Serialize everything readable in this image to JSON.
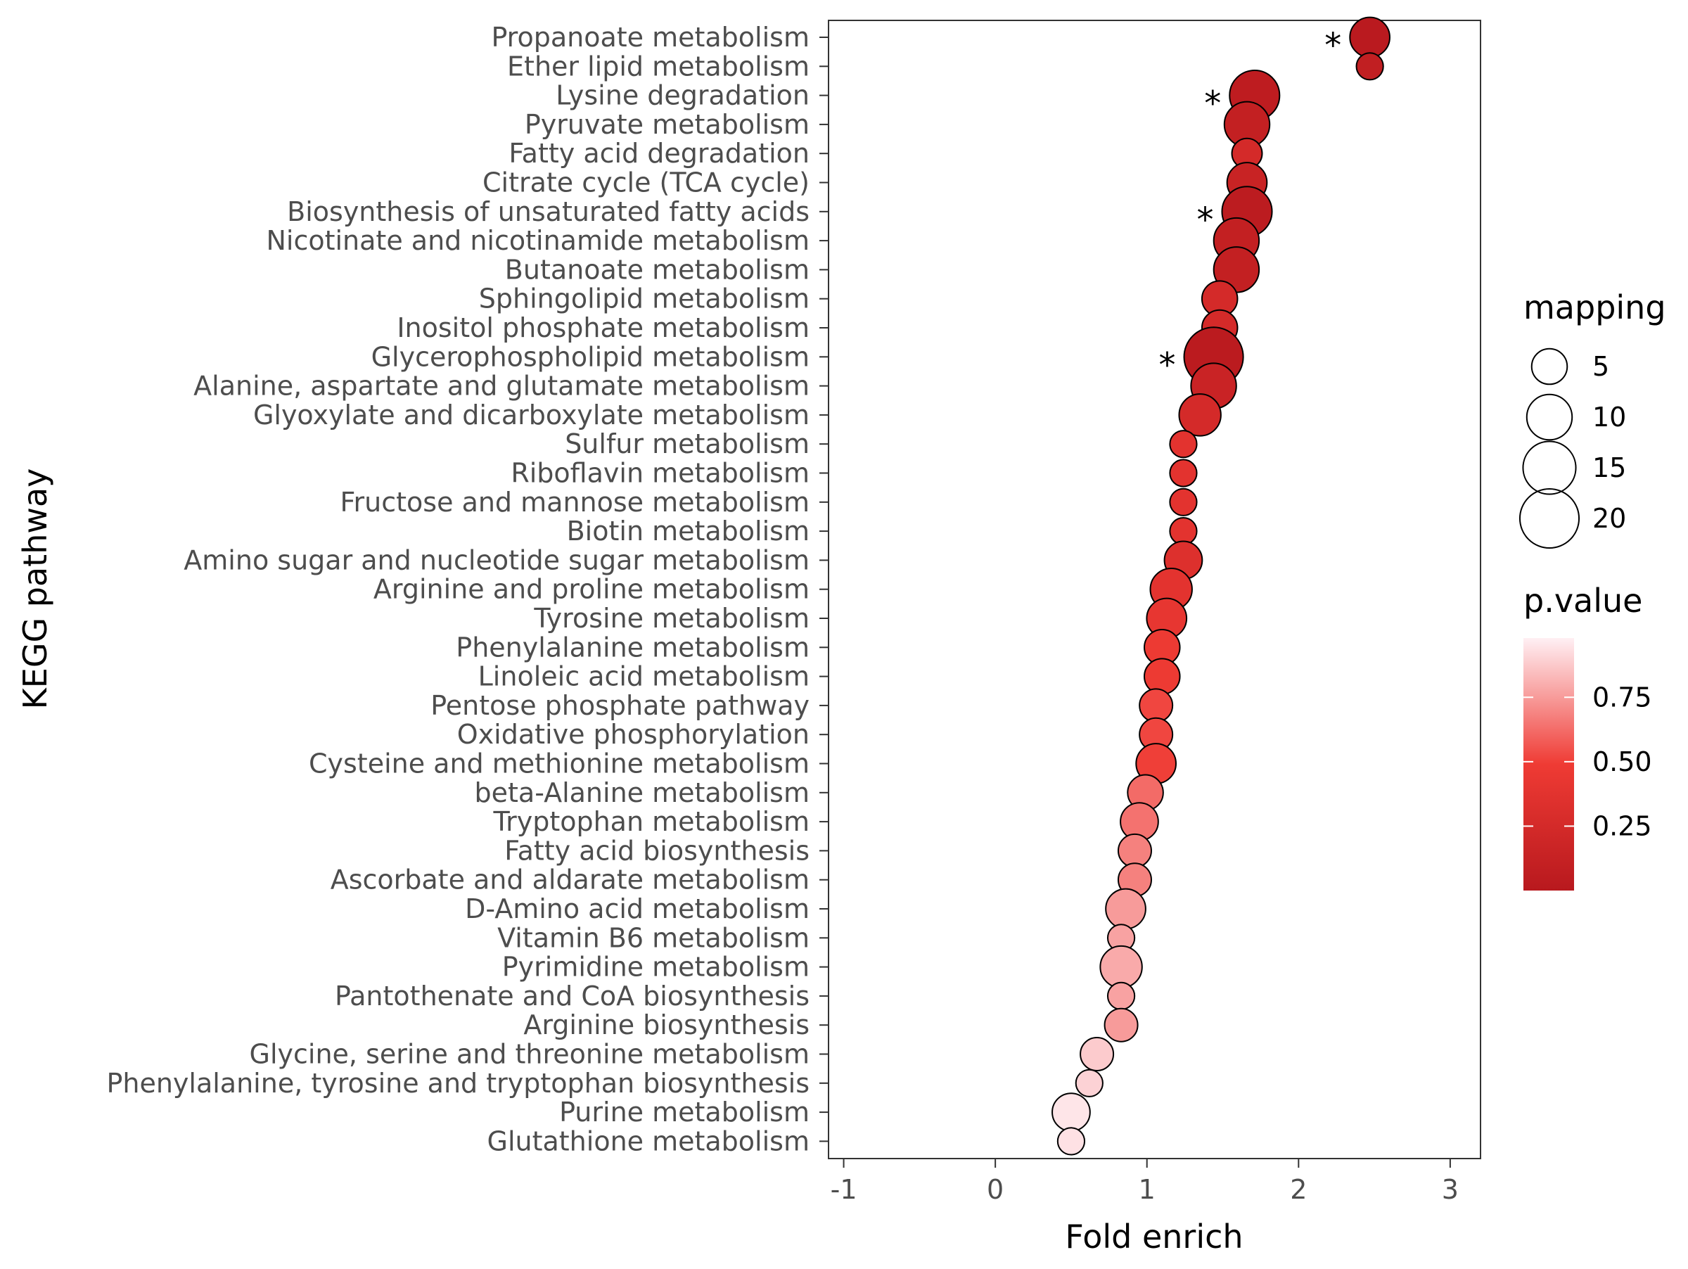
{
  "chart_data": {
    "type": "scatter",
    "xlabel": "Fold enrich",
    "ylabel": "KEGG pathway",
    "xlim": [
      -1.1,
      3.2
    ],
    "x_ticks": [
      "-1",
      "0",
      "1",
      "2",
      "3"
    ],
    "grid": false,
    "legend_position": "right",
    "points": [
      {
        "pathway": "Propanoate metabolism",
        "x": 2.47,
        "mapping": 7,
        "p": 0.02,
        "star": "*"
      },
      {
        "pathway": "Ether lipid metabolism",
        "x": 2.47,
        "mapping": 2,
        "p": 0.08,
        "star": ""
      },
      {
        "pathway": "Lysine degradation",
        "x": 1.71,
        "mapping": 13,
        "p": 0.05,
        "star": "*"
      },
      {
        "pathway": "Pyruvate metabolism",
        "x": 1.66,
        "mapping": 10,
        "p": 0.1,
        "star": ""
      },
      {
        "pathway": "Fatty acid degradation",
        "x": 1.66,
        "mapping": 3,
        "p": 0.25,
        "star": ""
      },
      {
        "pathway": "Citrate cycle (TCA cycle)",
        "x": 1.66,
        "mapping": 7,
        "p": 0.14,
        "star": ""
      },
      {
        "pathway": "Biosynthesis of unsaturated fatty acids",
        "x": 1.66,
        "mapping": 13,
        "p": 0.04,
        "star": "*"
      },
      {
        "pathway": "Nicotinate and nicotinamide metabolism",
        "x": 1.59,
        "mapping": 10,
        "p": 0.1,
        "star": ""
      },
      {
        "pathway": "Butanoate metabolism",
        "x": 1.59,
        "mapping": 10,
        "p": 0.1,
        "star": ""
      },
      {
        "pathway": "Sphingolipid metabolism",
        "x": 1.48,
        "mapping": 5,
        "p": 0.25,
        "star": ""
      },
      {
        "pathway": "Inositol phosphate metabolism",
        "x": 1.48,
        "mapping": 5,
        "p": 0.25,
        "star": ""
      },
      {
        "pathway": "Glycerophospholipid metabolism",
        "x": 1.44,
        "mapping": 20,
        "p": 0.03,
        "star": "*"
      },
      {
        "pathway": "Alanine, aspartate and glutamate metabolism",
        "x": 1.44,
        "mapping": 10,
        "p": 0.15,
        "star": ""
      },
      {
        "pathway": "Glyoxylate and dicarboxylate metabolism",
        "x": 1.35,
        "mapping": 8,
        "p": 0.25,
        "star": ""
      },
      {
        "pathway": "Sulfur metabolism",
        "x": 1.24,
        "mapping": 2,
        "p": 0.38,
        "star": ""
      },
      {
        "pathway": "Riboflavin metabolism",
        "x": 1.24,
        "mapping": 2,
        "p": 0.38,
        "star": ""
      },
      {
        "pathway": "Fructose and mannose metabolism",
        "x": 1.24,
        "mapping": 2,
        "p": 0.38,
        "star": ""
      },
      {
        "pathway": "Biotin metabolism",
        "x": 1.24,
        "mapping": 2,
        "p": 0.38,
        "star": ""
      },
      {
        "pathway": "Amino sugar and nucleotide sugar metabolism",
        "x": 1.24,
        "mapping": 6,
        "p": 0.33,
        "star": ""
      },
      {
        "pathway": "Arginine and proline metabolism",
        "x": 1.16,
        "mapping": 8,
        "p": 0.38,
        "star": ""
      },
      {
        "pathway": "Tyrosine metabolism",
        "x": 1.13,
        "mapping": 7,
        "p": 0.42,
        "star": ""
      },
      {
        "pathway": "Phenylalanine metabolism",
        "x": 1.1,
        "mapping": 5,
        "p": 0.47,
        "star": ""
      },
      {
        "pathway": "Linoleic acid metabolism",
        "x": 1.1,
        "mapping": 5,
        "p": 0.47,
        "star": ""
      },
      {
        "pathway": "Pentose phosphate pathway",
        "x": 1.06,
        "mapping": 4,
        "p": 0.52,
        "star": ""
      },
      {
        "pathway": "Oxidative phosphorylation",
        "x": 1.06,
        "mapping": 4,
        "p": 0.52,
        "star": ""
      },
      {
        "pathway": "Cysteine and methionine metabolism",
        "x": 1.06,
        "mapping": 7,
        "p": 0.5,
        "star": ""
      },
      {
        "pathway": "beta-Alanine metabolism",
        "x": 0.99,
        "mapping": 5,
        "p": 0.62,
        "star": ""
      },
      {
        "pathway": "Tryptophan metabolism",
        "x": 0.95,
        "mapping": 6,
        "p": 0.64,
        "star": ""
      },
      {
        "pathway": "Fatty acid biosynthesis",
        "x": 0.92,
        "mapping": 4,
        "p": 0.68,
        "star": ""
      },
      {
        "pathway": "Ascorbate and aldarate metabolism",
        "x": 0.92,
        "mapping": 4,
        "p": 0.68,
        "star": ""
      },
      {
        "pathway": "D-Amino acid metabolism",
        "x": 0.86,
        "mapping": 7,
        "p": 0.75,
        "star": ""
      },
      {
        "pathway": "Vitamin B6 metabolism",
        "x": 0.83,
        "mapping": 2,
        "p": 0.77,
        "star": ""
      },
      {
        "pathway": "Pyrimidine metabolism",
        "x": 0.83,
        "mapping": 8,
        "p": 0.79,
        "star": ""
      },
      {
        "pathway": "Pantothenate and CoA biosynthesis",
        "x": 0.83,
        "mapping": 2,
        "p": 0.77,
        "star": ""
      },
      {
        "pathway": "Arginine biosynthesis",
        "x": 0.83,
        "mapping": 4,
        "p": 0.75,
        "star": ""
      },
      {
        "pathway": "Glycine, serine and threonine metabolism",
        "x": 0.67,
        "mapping": 4,
        "p": 0.88,
        "star": ""
      },
      {
        "pathway": "Phenylalanine, tyrosine and tryptophan biosynthesis",
        "x": 0.62,
        "mapping": 2,
        "p": 0.9,
        "star": ""
      },
      {
        "pathway": "Purine metabolism",
        "x": 0.5,
        "mapping": 6,
        "p": 0.95,
        "star": ""
      },
      {
        "pathway": "Glutathione metabolism",
        "x": 0.5,
        "mapping": 2,
        "p": 0.94,
        "star": ""
      }
    ],
    "legend_size": {
      "title": "mapping",
      "entries": [
        {
          "label": "5",
          "value": 5
        },
        {
          "label": "10",
          "value": 10
        },
        {
          "label": "15",
          "value": 15
        },
        {
          "label": "20",
          "value": 20
        }
      ]
    },
    "legend_color": {
      "title": "p.value",
      "range": [
        0.0,
        0.98
      ],
      "ticks": [
        {
          "label": "0.25",
          "value": 0.25
        },
        {
          "label": "0.50",
          "value": 0.5
        },
        {
          "label": "0.75",
          "value": 0.75
        }
      ],
      "low_color": "#B8191E",
      "mid_color": "#EF3B34",
      "high_color": "#FFF0F4"
    }
  }
}
